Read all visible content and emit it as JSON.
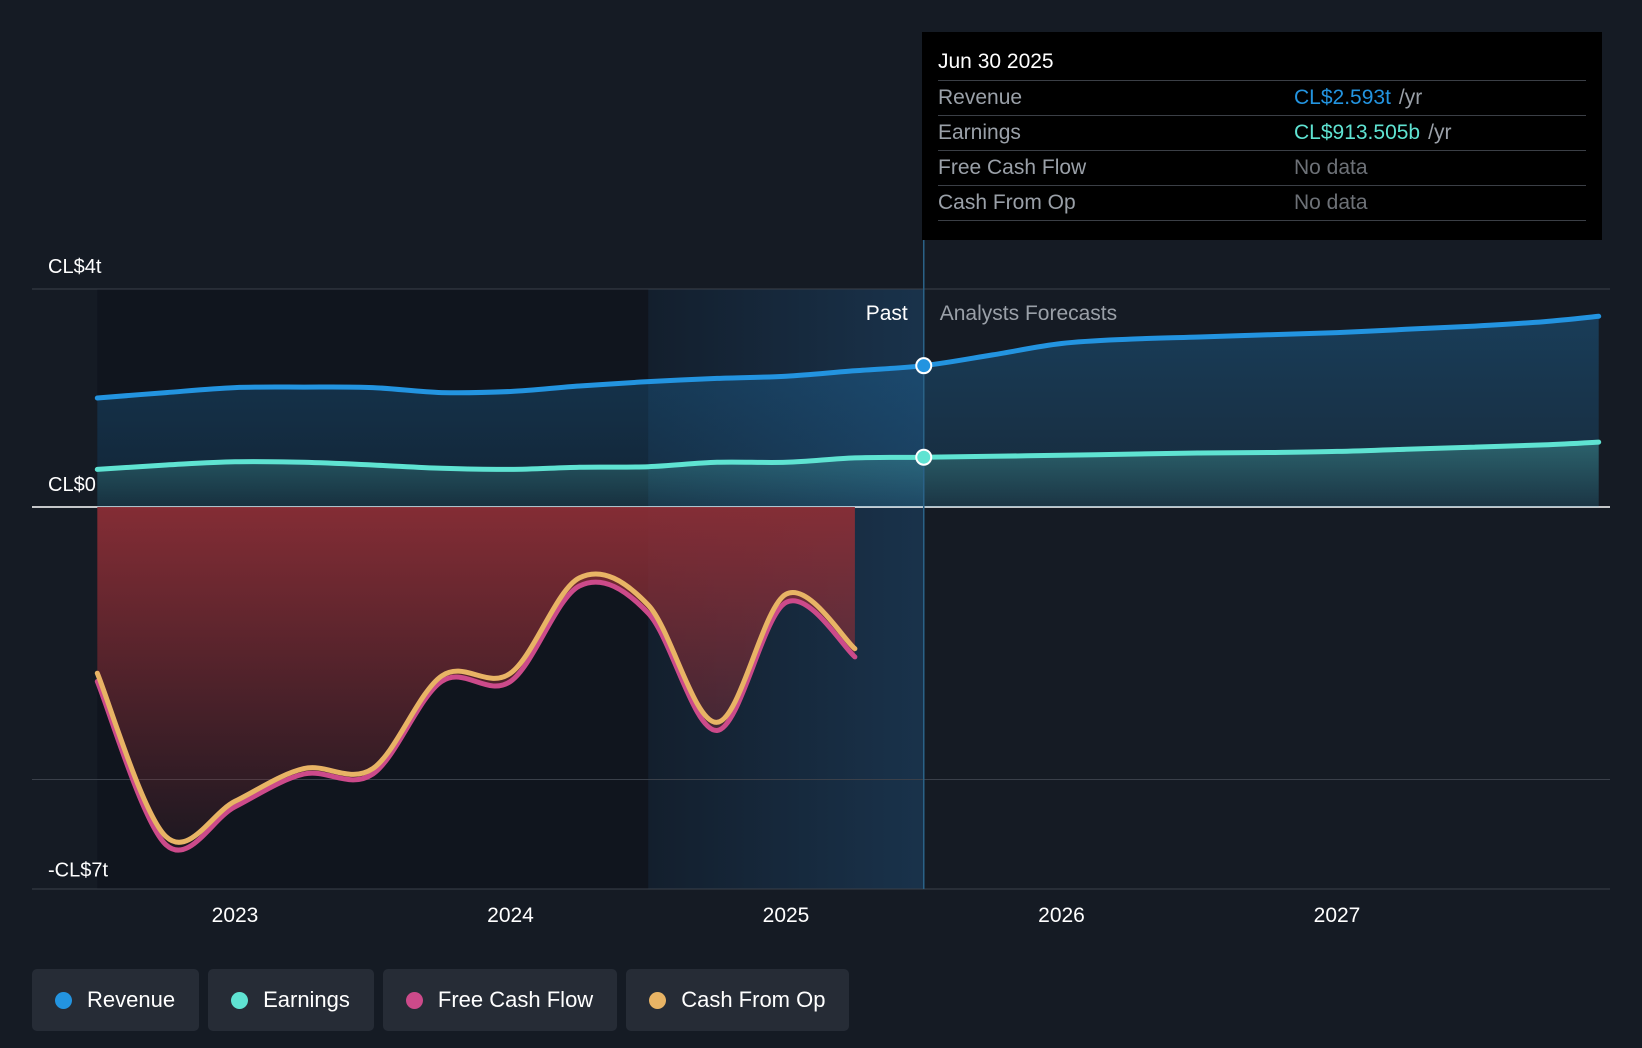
{
  "colors": {
    "revenue": "#2394e0",
    "earnings": "#5fe3d2",
    "free_cash_flow": "#cc4a8a",
    "cash_from_op": "#e8b465",
    "negative_fill": "#8a2e36"
  },
  "tooltip": {
    "date": "Jun 30 2025",
    "rows": [
      {
        "label": "Revenue",
        "value": "CL$2.593t",
        "suffix": "/yr"
      },
      {
        "label": "Earnings",
        "value": "CL$913.505b",
        "suffix": "/yr"
      },
      {
        "label": "Free Cash Flow",
        "value": "No data",
        "suffix": ""
      },
      {
        "label": "Cash From Op",
        "value": "No data",
        "suffix": ""
      }
    ]
  },
  "legend": [
    {
      "label": "Revenue",
      "color": "#2394e0"
    },
    {
      "label": "Earnings",
      "color": "#5fe3d2"
    },
    {
      "label": "Free Cash Flow",
      "color": "#cc4a8a"
    },
    {
      "label": "Cash From Op",
      "color": "#e8b465"
    }
  ],
  "chart_data": {
    "type": "line",
    "title": "",
    "xlabel": "",
    "ylabel": "",
    "x_unit": "year",
    "xlim": [
      2022.5,
      2027.95
    ],
    "ylim": [
      -7,
      4
    ],
    "y_ticks": [
      {
        "value": 4,
        "label": "CL$4t"
      },
      {
        "value": 0,
        "label": "CL$0"
      },
      {
        "value": -7,
        "label": "-CL$7t"
      }
    ],
    "gridlines": [
      4,
      0,
      -5
    ],
    "x_ticks": [
      {
        "value": 2023,
        "label": "2023"
      },
      {
        "value": 2024,
        "label": "2024"
      },
      {
        "value": 2025,
        "label": "2025"
      },
      {
        "value": 2026,
        "label": "2026"
      },
      {
        "value": 2027,
        "label": "2027"
      }
    ],
    "past_label": "Past",
    "forecast_label": "Analysts Forecasts",
    "divider_x": 2025.5,
    "highlight_range": [
      2024.5,
      2025.5
    ],
    "series": [
      {
        "name": "Revenue",
        "color": "#2394e0",
        "x": [
          2022.5,
          2022.75,
          2023.0,
          2023.25,
          2023.5,
          2023.75,
          2024.0,
          2024.25,
          2024.5,
          2024.75,
          2025.0,
          2025.25,
          2025.5,
          2025.75,
          2026.0,
          2026.25,
          2026.5,
          2026.75,
          2027.0,
          2027.25,
          2027.5,
          2027.75,
          2027.95
        ],
        "y": [
          2.0,
          2.1,
          2.19,
          2.2,
          2.19,
          2.1,
          2.12,
          2.22,
          2.3,
          2.36,
          2.4,
          2.5,
          2.593,
          2.79,
          3.0,
          3.08,
          3.12,
          3.16,
          3.2,
          3.26,
          3.32,
          3.4,
          3.5
        ]
      },
      {
        "name": "Earnings",
        "color": "#5fe3d2",
        "x": [
          2022.5,
          2022.75,
          2023.0,
          2023.25,
          2023.5,
          2023.75,
          2024.0,
          2024.25,
          2024.5,
          2024.75,
          2025.0,
          2025.25,
          2025.5,
          2025.75,
          2026.0,
          2026.25,
          2026.5,
          2026.75,
          2027.0,
          2027.25,
          2027.5,
          2027.75,
          2027.95
        ],
        "y": [
          0.69,
          0.77,
          0.83,
          0.82,
          0.77,
          0.71,
          0.69,
          0.73,
          0.74,
          0.82,
          0.82,
          0.9,
          0.9135,
          0.93,
          0.95,
          0.97,
          0.99,
          1.0,
          1.02,
          1.06,
          1.1,
          1.14,
          1.19
        ]
      },
      {
        "name": "Free Cash Flow",
        "color": "#cc4a8a",
        "x": [
          2022.5,
          2022.75,
          2023.0,
          2023.25,
          2023.5,
          2023.75,
          2024.0,
          2024.25,
          2024.5,
          2024.75,
          2025.0,
          2025.25
        ],
        "y": [
          -3.2,
          -6.2,
          -5.5,
          -4.9,
          -4.9,
          -3.2,
          -3.2,
          -1.45,
          -1.95,
          -4.1,
          -1.75,
          -2.75
        ]
      },
      {
        "name": "Cash From Op",
        "color": "#e8b465",
        "x": [
          2022.5,
          2022.75,
          2023.0,
          2023.25,
          2023.5,
          2023.75,
          2024.0,
          2024.25,
          2024.5,
          2024.75,
          2025.0,
          2025.25
        ],
        "y": [
          -3.05,
          -6.05,
          -5.4,
          -4.8,
          -4.8,
          -3.1,
          -3.05,
          -1.3,
          -1.8,
          -3.95,
          -1.6,
          -2.6
        ]
      }
    ]
  }
}
